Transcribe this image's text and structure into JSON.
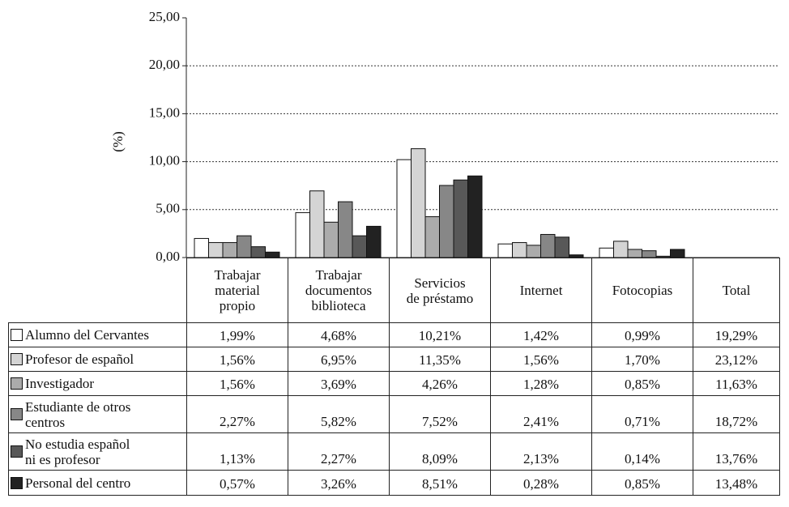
{
  "chart_data": {
    "type": "bar",
    "y_label": "(%)",
    "categories": [
      "Trabajar\nmaterial\npropio",
      "Trabajar\ndocumentos\nbiblioteca",
      "Servicios\nde préstamo",
      "Internet",
      "Fotocopias"
    ],
    "total_label": "Total",
    "ylim": [
      0,
      25
    ],
    "yticks": [
      {
        "value": 0,
        "label": "0,00"
      },
      {
        "value": 5,
        "label": "5,00"
      },
      {
        "value": 10,
        "label": "10,00"
      },
      {
        "value": 15,
        "label": "15,00"
      },
      {
        "value": 20,
        "label": "20,00"
      },
      {
        "value": 25,
        "label": "25,00"
      }
    ],
    "grid": true,
    "series": [
      {
        "name": "Alumno del Cervantes",
        "color": "#ffffff",
        "values": [
          1.99,
          4.68,
          10.21,
          1.42,
          0.99
        ],
        "value_labels": [
          "1,99%",
          "4,68%",
          "10,21%",
          "1,42%",
          "0,99%"
        ],
        "total": 19.29,
        "total_label": "19,29%"
      },
      {
        "name": "Profesor de español",
        "color": "#d4d4d4",
        "values": [
          1.56,
          6.95,
          11.35,
          1.56,
          1.7
        ],
        "value_labels": [
          "1,56%",
          "6,95%",
          "11,35%",
          "1,56%",
          "1,70%"
        ],
        "total": 23.12,
        "total_label": "23,12%"
      },
      {
        "name": "Investigador",
        "color": "#ababab",
        "values": [
          1.56,
          3.69,
          4.26,
          1.28,
          0.85
        ],
        "value_labels": [
          "1,56%",
          "3,69%",
          "4,26%",
          "1,28%",
          "0,85%"
        ],
        "total": 11.63,
        "total_label": "11,63%"
      },
      {
        "name": "Estudiante de otros\ncentros",
        "color": "#878787",
        "values": [
          2.27,
          5.82,
          7.52,
          2.41,
          0.71
        ],
        "value_labels": [
          "2,27%",
          "5,82%",
          "7,52%",
          "2,41%",
          "0,71%"
        ],
        "total": 18.72,
        "total_label": "18,72%"
      },
      {
        "name": "No estudia español\nni es profesor",
        "color": "#585858",
        "values": [
          1.13,
          2.27,
          8.09,
          2.13,
          0.14
        ],
        "value_labels": [
          "1,13%",
          "2,27%",
          "8,09%",
          "2,13%",
          "0,14%"
        ],
        "total": 13.76,
        "total_label": "13,76%"
      },
      {
        "name": "Personal del centro",
        "color": "#222222",
        "values": [
          0.57,
          3.26,
          8.51,
          0.28,
          0.85
        ],
        "value_labels": [
          "0,57%",
          "3,26%",
          "8,51%",
          "0,28%",
          "0,85%"
        ],
        "total": 13.48,
        "total_label": "13,48%"
      }
    ]
  }
}
